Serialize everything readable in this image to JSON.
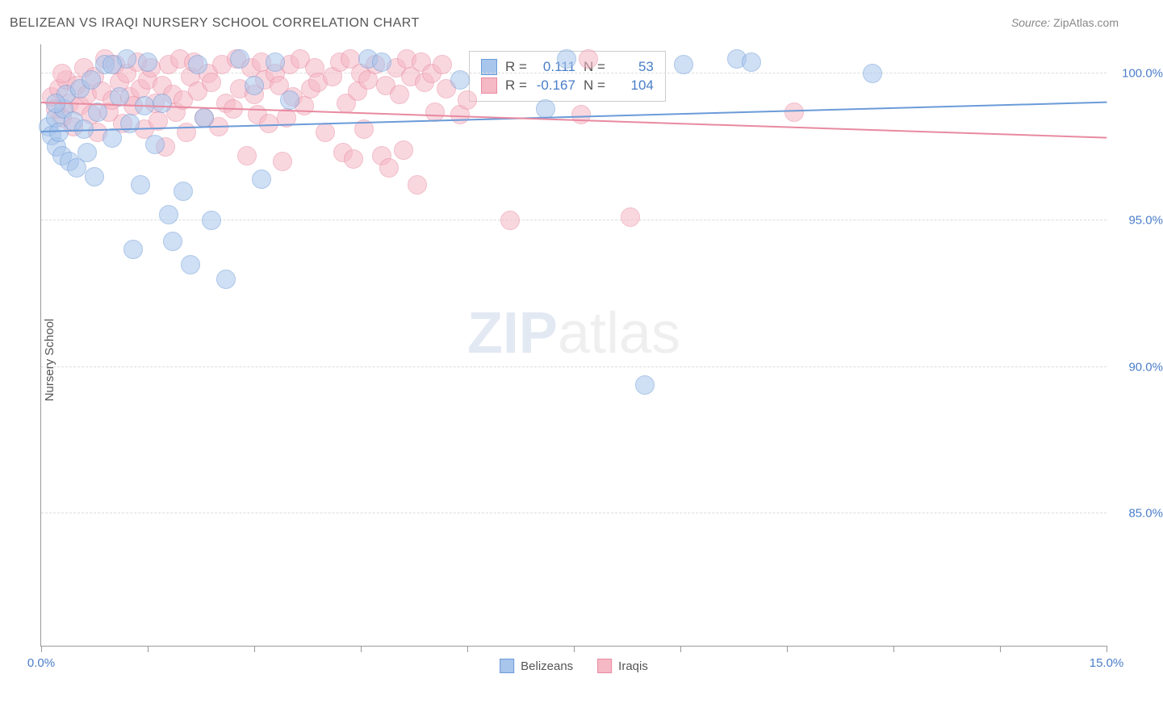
{
  "title": "BELIZEAN VS IRAQI NURSERY SCHOOL CORRELATION CHART",
  "source": {
    "label": "Source:",
    "value": "ZipAtlas.com"
  },
  "ylabel": "Nursery School",
  "watermark": {
    "part1": "ZIP",
    "part2": "atlas"
  },
  "chart": {
    "type": "scatter",
    "background_color": "#ffffff",
    "grid_color": "#dddddd",
    "axis_color": "#999999",
    "text_color": "#555555",
    "value_color": "#4a7ec9",
    "xlim": [
      0.0,
      15.0
    ],
    "ylim": [
      80.5,
      101.0
    ],
    "yticks": [
      85.0,
      90.0,
      95.0,
      100.0
    ],
    "ytick_labels": [
      "85.0%",
      "90.0%",
      "95.0%",
      "100.0%"
    ],
    "xticks": [
      0.0,
      1.5,
      3.0,
      4.5,
      6.0,
      7.5,
      9.0,
      10.5,
      12.0,
      13.5,
      15.0
    ],
    "xtick_labels_shown": {
      "0.0": "0.0%",
      "15.0": "15.0%"
    },
    "marker_radius": 11,
    "marker_opacity": 0.55,
    "trendline_width": 2,
    "series": [
      {
        "name": "Belizeans",
        "color_fill": "#a8c5ec",
        "color_stroke": "#6b9bd8",
        "R": "0.111",
        "N": "53",
        "trend": {
          "x1": 0.0,
          "y1": 98.0,
          "x2": 15.0,
          "y2": 99.0
        },
        "points": [
          [
            0.1,
            98.2
          ],
          [
            0.15,
            97.9
          ],
          [
            0.2,
            98.5
          ],
          [
            0.22,
            97.5
          ],
          [
            0.25,
            98.0
          ],
          [
            0.3,
            97.2
          ],
          [
            0.32,
            98.8
          ],
          [
            0.35,
            99.3
          ],
          [
            0.4,
            97.0
          ],
          [
            0.45,
            98.4
          ],
          [
            0.5,
            96.8
          ],
          [
            0.55,
            99.5
          ],
          [
            0.6,
            98.1
          ],
          [
            0.65,
            97.3
          ],
          [
            0.7,
            99.8
          ],
          [
            0.75,
            96.5
          ],
          [
            0.8,
            98.7
          ],
          [
            0.9,
            100.3
          ],
          [
            1.0,
            97.8
          ],
          [
            1.1,
            99.2
          ],
          [
            1.2,
            100.5
          ],
          [
            1.25,
            98.3
          ],
          [
            1.3,
            94.0
          ],
          [
            1.4,
            96.2
          ],
          [
            1.5,
            100.4
          ],
          [
            1.6,
            97.6
          ],
          [
            1.7,
            99.0
          ],
          [
            1.8,
            95.2
          ],
          [
            1.85,
            94.3
          ],
          [
            2.0,
            96.0
          ],
          [
            2.1,
            93.5
          ],
          [
            2.2,
            100.3
          ],
          [
            2.3,
            98.5
          ],
          [
            2.4,
            95.0
          ],
          [
            2.6,
            93.0
          ],
          [
            2.8,
            100.5
          ],
          [
            3.0,
            99.6
          ],
          [
            3.1,
            96.4
          ],
          [
            3.3,
            100.4
          ],
          [
            3.5,
            99.1
          ],
          [
            4.6,
            100.5
          ],
          [
            4.8,
            100.4
          ],
          [
            5.9,
            99.8
          ],
          [
            7.1,
            98.8
          ],
          [
            7.4,
            100.5
          ],
          [
            8.5,
            89.4
          ],
          [
            9.05,
            100.3
          ],
          [
            9.8,
            100.5
          ],
          [
            10.0,
            100.4
          ],
          [
            11.7,
            100.0
          ],
          [
            0.2,
            99.0
          ],
          [
            1.0,
            100.3
          ],
          [
            1.45,
            98.9
          ]
        ]
      },
      {
        "name": "Iraqis",
        "color_fill": "#f5b8c5",
        "color_stroke": "#e88aa0",
        "R": "-0.167",
        "N": "104",
        "trend": {
          "x1": 0.0,
          "y1": 99.0,
          "x2": 15.0,
          "y2": 97.8
        },
        "points": [
          [
            0.15,
            99.2
          ],
          [
            0.2,
            98.8
          ],
          [
            0.25,
            99.5
          ],
          [
            0.3,
            98.5
          ],
          [
            0.35,
            99.8
          ],
          [
            0.4,
            99.0
          ],
          [
            0.45,
            98.2
          ],
          [
            0.5,
            99.6
          ],
          [
            0.55,
            98.9
          ],
          [
            0.6,
            100.2
          ],
          [
            0.65,
            99.3
          ],
          [
            0.7,
            98.6
          ],
          [
            0.75,
            99.9
          ],
          [
            0.8,
            98.0
          ],
          [
            0.85,
            99.4
          ],
          [
            0.9,
            100.5
          ],
          [
            0.95,
            98.7
          ],
          [
            1.0,
            99.1
          ],
          [
            1.05,
            100.3
          ],
          [
            1.1,
            99.7
          ],
          [
            1.15,
            98.3
          ],
          [
            1.2,
            100.0
          ],
          [
            1.25,
            99.2
          ],
          [
            1.3,
            98.9
          ],
          [
            1.35,
            100.4
          ],
          [
            1.4,
            99.5
          ],
          [
            1.45,
            98.1
          ],
          [
            1.5,
            99.8
          ],
          [
            1.55,
            100.2
          ],
          [
            1.6,
            99.0
          ],
          [
            1.65,
            98.4
          ],
          [
            1.7,
            99.6
          ],
          [
            1.75,
            97.5
          ],
          [
            1.8,
            100.3
          ],
          [
            1.85,
            99.3
          ],
          [
            1.9,
            98.7
          ],
          [
            1.95,
            100.5
          ],
          [
            2.0,
            99.1
          ],
          [
            2.05,
            98.0
          ],
          [
            2.1,
            99.9
          ],
          [
            2.15,
            100.4
          ],
          [
            2.2,
            99.4
          ],
          [
            2.3,
            98.5
          ],
          [
            2.35,
            100.0
          ],
          [
            2.4,
            99.7
          ],
          [
            2.5,
            98.2
          ],
          [
            2.55,
            100.3
          ],
          [
            2.6,
            99.0
          ],
          [
            2.7,
            98.8
          ],
          [
            2.75,
            100.5
          ],
          [
            2.8,
            99.5
          ],
          [
            2.9,
            97.2
          ],
          [
            2.95,
            100.2
          ],
          [
            3.0,
            99.3
          ],
          [
            3.05,
            98.6
          ],
          [
            3.1,
            100.4
          ],
          [
            3.15,
            99.8
          ],
          [
            3.2,
            98.3
          ],
          [
            3.3,
            100.0
          ],
          [
            3.35,
            99.6
          ],
          [
            3.4,
            97.0
          ],
          [
            3.45,
            98.5
          ],
          [
            3.5,
            100.3
          ],
          [
            3.55,
            99.2
          ],
          [
            3.65,
            100.5
          ],
          [
            3.7,
            98.9
          ],
          [
            3.8,
            99.5
          ],
          [
            3.85,
            100.2
          ],
          [
            3.9,
            99.7
          ],
          [
            4.0,
            98.0
          ],
          [
            4.1,
            99.9
          ],
          [
            4.2,
            100.4
          ],
          [
            4.25,
            97.3
          ],
          [
            4.3,
            99.0
          ],
          [
            4.35,
            100.5
          ],
          [
            4.4,
            97.1
          ],
          [
            4.45,
            99.4
          ],
          [
            4.5,
            100.0
          ],
          [
            4.55,
            98.1
          ],
          [
            4.6,
            99.8
          ],
          [
            4.7,
            100.3
          ],
          [
            4.8,
            97.2
          ],
          [
            4.85,
            99.6
          ],
          [
            4.9,
            96.8
          ],
          [
            5.0,
            100.2
          ],
          [
            5.05,
            99.3
          ],
          [
            5.1,
            97.4
          ],
          [
            5.15,
            100.5
          ],
          [
            5.2,
            99.9
          ],
          [
            5.3,
            96.2
          ],
          [
            5.35,
            100.4
          ],
          [
            5.4,
            99.7
          ],
          [
            5.5,
            100.0
          ],
          [
            5.55,
            98.7
          ],
          [
            5.65,
            100.3
          ],
          [
            5.7,
            99.5
          ],
          [
            5.9,
            98.6
          ],
          [
            6.0,
            99.1
          ],
          [
            6.6,
            95.0
          ],
          [
            7.6,
            98.6
          ],
          [
            7.7,
            100.5
          ],
          [
            8.3,
            95.1
          ],
          [
            10.6,
            98.7
          ],
          [
            0.3,
            100.0
          ]
        ]
      }
    ],
    "stats_labels": {
      "R": "R =",
      "N": "N ="
    },
    "bottom_legend": [
      {
        "label": "Belizeans",
        "fill": "#a8c5ec",
        "stroke": "#6b9bd8"
      },
      {
        "label": "Iraqis",
        "fill": "#f5b8c5",
        "stroke": "#e88aa0"
      }
    ]
  }
}
